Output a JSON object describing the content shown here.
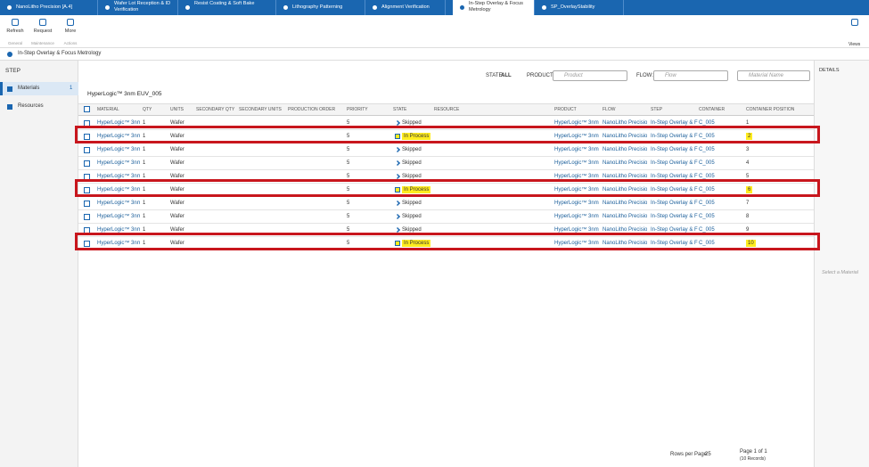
{
  "tabs": [
    {
      "label": "NanoLitho Precision [A.4]"
    },
    {
      "label": "Wafer Lot Reception & ID Verification"
    },
    {
      "label": "Resist Coating & Soft Bake"
    },
    {
      "label": "Lithography Patterning"
    },
    {
      "label": "Alignment Verification"
    },
    {
      "label": "In-Step Overlay & Focus Metrology",
      "active": true
    },
    {
      "label": "SP_OverlayStability"
    }
  ],
  "toolbar": {
    "buttons": [
      "Refresh",
      "Request",
      "More"
    ],
    "groups": [
      "General",
      "Maintenance",
      "Actions"
    ],
    "views": "Views"
  },
  "breadcrumb": "In-Step Overlay & Focus Metrology",
  "side": {
    "title": "STEP",
    "items": [
      {
        "label": "Materials",
        "count": "1"
      },
      {
        "label": "Resources"
      }
    ]
  },
  "filters": {
    "state_label": "STATE:",
    "state_value": "ALL",
    "product_label": "PRODUCT:",
    "product_placeholder": "Product",
    "flow_label": "FLOW:",
    "flow_placeholder": "Flow",
    "material_placeholder": "Material Name"
  },
  "details": {
    "title": "DETAILS",
    "empty": "Select a Material"
  },
  "table": {
    "title": "HyperLogic™ 3nm EUV_005",
    "columns": [
      "MATERIAL",
      "QTY",
      "UNITS",
      "SECONDARY QTY",
      "SECONDARY UNITS",
      "PRODUCTION ORDER",
      "PRIORITY",
      "STATE",
      "RESOURCE",
      "PRODUCT",
      "FLOW",
      "STEP",
      "CONTAINER",
      "CONTAINER POSITION"
    ],
    "rows": [
      {
        "material": "HyperLogic™ 3nm",
        "qty": 1,
        "units": "Wafer",
        "priority": 5,
        "state": "Skipped",
        "product": "HyperLogic™ 3nm",
        "flow": "NanoLitho Precisio",
        "step": "In-Step Overlay & F",
        "container": "C_005",
        "position": 1
      },
      {
        "material": "HyperLogic™ 3nm",
        "qty": 1,
        "units": "Wafer",
        "priority": 5,
        "state": "In Process",
        "product": "HyperLogic™ 3nm",
        "flow": "NanoLitho Precisio",
        "step": "In-Step Overlay & F",
        "container": "C_005",
        "position": 2,
        "highlight": true
      },
      {
        "material": "HyperLogic™ 3nm",
        "qty": 1,
        "units": "Wafer",
        "priority": 5,
        "state": "Skipped",
        "product": "HyperLogic™ 3nm",
        "flow": "NanoLitho Precisio",
        "step": "In-Step Overlay & F",
        "container": "C_005",
        "position": 3
      },
      {
        "material": "HyperLogic™ 3nm",
        "qty": 1,
        "units": "Wafer",
        "priority": 5,
        "state": "Skipped",
        "product": "HyperLogic™ 3nm",
        "flow": "NanoLitho Precisio",
        "step": "In-Step Overlay & F",
        "container": "C_005",
        "position": 4
      },
      {
        "material": "HyperLogic™ 3nm",
        "qty": 1,
        "units": "Wafer",
        "priority": 5,
        "state": "Skipped",
        "product": "HyperLogic™ 3nm",
        "flow": "NanoLitho Precisio",
        "step": "In-Step Overlay & F",
        "container": "C_005",
        "position": 5
      },
      {
        "material": "HyperLogic™ 3nm",
        "qty": 1,
        "units": "Wafer",
        "priority": 5,
        "state": "In Process",
        "product": "HyperLogic™ 3nm",
        "flow": "NanoLitho Precisio",
        "step": "In-Step Overlay & F",
        "container": "C_005",
        "position": 6,
        "highlight": true
      },
      {
        "material": "HyperLogic™ 3nm",
        "qty": 1,
        "units": "Wafer",
        "priority": 5,
        "state": "Skipped",
        "product": "HyperLogic™ 3nm",
        "flow": "NanoLitho Precisio",
        "step": "In-Step Overlay & F",
        "container": "C_005",
        "position": 7
      },
      {
        "material": "HyperLogic™ 3nm",
        "qty": 1,
        "units": "Wafer",
        "priority": 5,
        "state": "Skipped",
        "product": "HyperLogic™ 3nm",
        "flow": "NanoLitho Precisio",
        "step": "In-Step Overlay & F",
        "container": "C_005",
        "position": 8
      },
      {
        "material": "HyperLogic™ 3nm",
        "qty": 1,
        "units": "Wafer",
        "priority": 5,
        "state": "Skipped",
        "product": "HyperLogic™ 3nm",
        "flow": "NanoLitho Precisio",
        "step": "In-Step Overlay & F",
        "container": "C_005",
        "position": 9
      },
      {
        "material": "HyperLogic™ 3nm",
        "qty": 1,
        "units": "Wafer",
        "priority": 5,
        "state": "In Process",
        "product": "HyperLogic™ 3nm",
        "flow": "NanoLitho Precisio",
        "step": "In-Step Overlay & F",
        "container": "C_005",
        "position": 10,
        "highlight": true
      }
    ]
  },
  "pager": {
    "rows_label": "Rows per Page:",
    "rows_value": "25",
    "page": "Page 1 of 1",
    "records": "(10 Records)"
  }
}
